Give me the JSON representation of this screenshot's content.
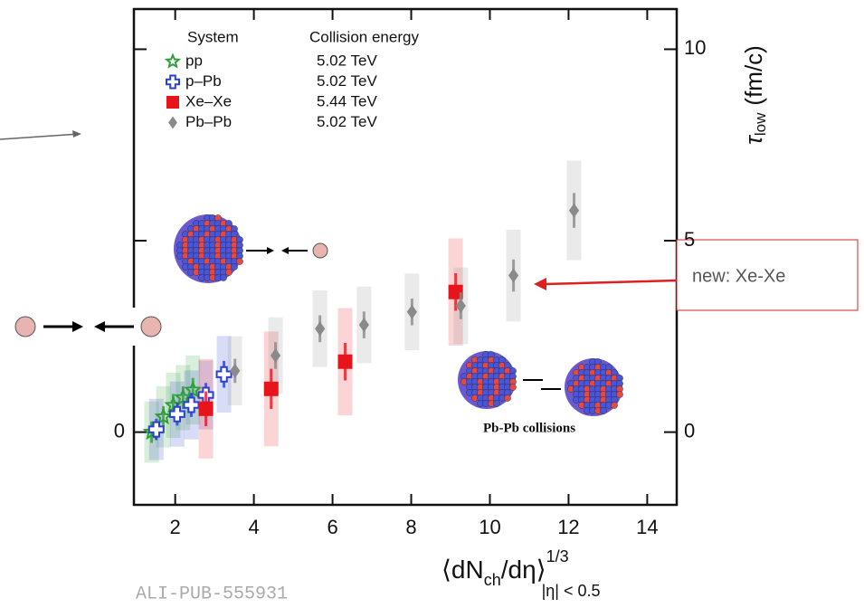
{
  "chart_data": {
    "type": "scatter",
    "xlim": [
      0.95,
      14.75
    ],
    "ylim": [
      -1.9,
      11.05
    ],
    "xticks": [
      2,
      4,
      6,
      8,
      10,
      12,
      14
    ],
    "yticks": [
      0,
      5,
      10
    ],
    "left_yticks": [
      0
    ],
    "legend_headers": [
      "System",
      "Collision energy"
    ],
    "y_label": {
      "symbol": "τ",
      "subscript": "low",
      "unit": "(fm/c)"
    },
    "x_label": {
      "main": "⟨dN",
      "sub1": "ch",
      "rest": "/dη⟩",
      "sup": "1/3",
      "sub2": "|η| < 0.5"
    },
    "series": [
      {
        "name": "pp",
        "energy": "5.02 TeV",
        "color": "#2e9e3a",
        "marker": "star",
        "x": [
          1.4,
          1.7,
          1.95,
          2.2,
          2.45
        ],
        "values": [
          0,
          0.4,
          0.7,
          0.9,
          1.1
        ],
        "errors": [
          0.8,
          0.8,
          0.85,
          0.85,
          0.9
        ]
      },
      {
        "name": "p–Pb",
        "energy": "5.02 TeV",
        "color": "#2b3fd1",
        "marker": "cross",
        "x": [
          1.52,
          2.05,
          2.41,
          2.78,
          3.24
        ],
        "values": [
          0.07,
          0.47,
          0.71,
          0.97,
          1.51
        ],
        "errors": [
          0.8,
          0.85,
          0.9,
          0.9,
          1.0
        ]
      },
      {
        "name": "Xe–Xe",
        "energy": "5.44 TeV",
        "color": "#e8141b",
        "marker": "square",
        "x": [
          2.78,
          4.44,
          6.32,
          9.13
        ],
        "values": [
          0.61,
          1.13,
          1.84,
          3.66
        ],
        "errors": [
          1.3,
          1.5,
          1.4,
          1.4
        ]
      },
      {
        "name": "Pb–Pb",
        "energy": "5.02 TeV",
        "color": "#8a8a8a",
        "marker": "diamond",
        "x": [
          3.52,
          4.55,
          5.68,
          6.8,
          8.02,
          9.26,
          10.6,
          12.14
        ],
        "values": [
          1.6,
          2.0,
          2.7,
          2.8,
          3.14,
          3.3,
          4.09,
          5.79
        ],
        "errors": [
          0.9,
          1.0,
          1.0,
          1.0,
          1.0,
          1.0,
          1.2,
          1.3
        ]
      }
    ]
  },
  "annotations": {
    "new_label": "new: Xe-Xe",
    "collisions_label": "Pb-Pb collisions",
    "figure_id": "ALI-PUB-555931"
  }
}
